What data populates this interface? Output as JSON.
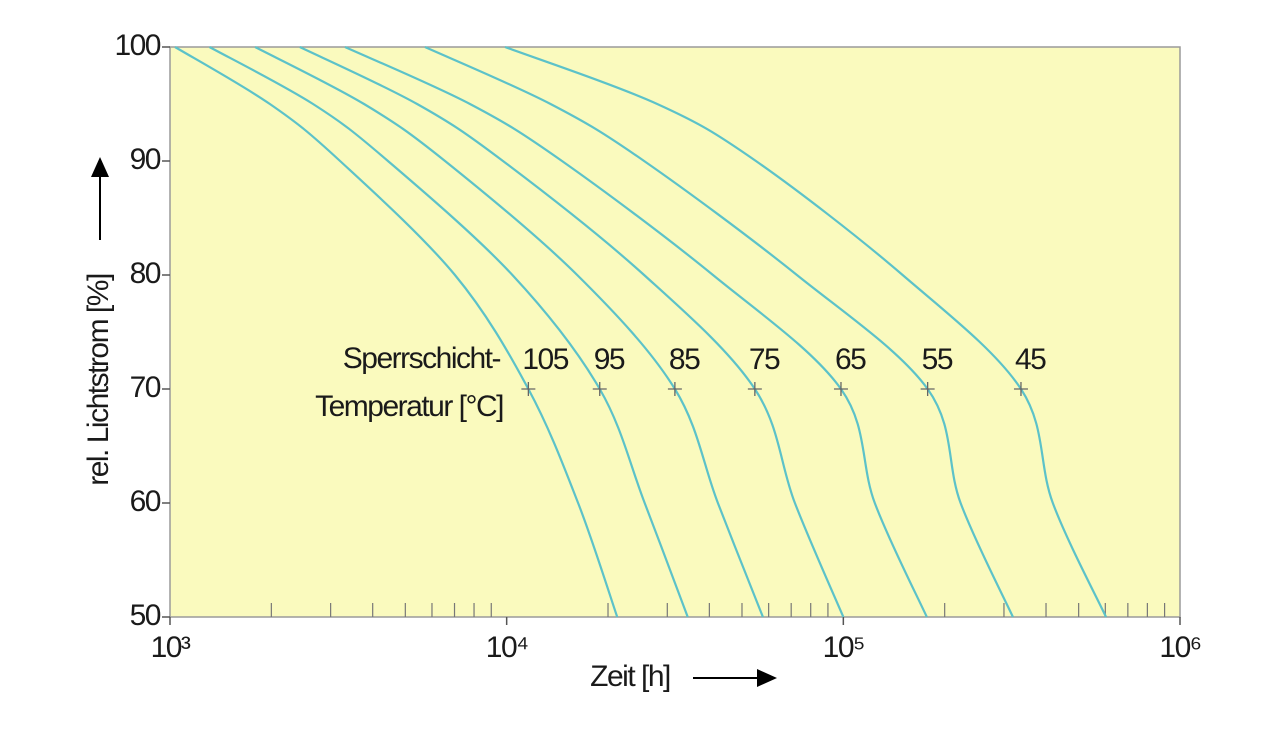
{
  "chart_data": {
    "type": "line",
    "x_label": "Zeit [h]",
    "y_label": "rel. Lichtstrom [%]",
    "annotation": [
      "Sperrschicht-",
      "Temperatur [°C]"
    ],
    "xscale": "log",
    "xlim": [
      1000,
      1000000
    ],
    "xticks": [
      {
        "value": 1000,
        "label": "10³"
      },
      {
        "value": 10000,
        "label": "10⁴"
      },
      {
        "value": 100000,
        "label": "10⁵"
      },
      {
        "value": 1000000,
        "label": "10⁶"
      }
    ],
    "xminorticks": [
      2000,
      3000,
      4000,
      5000,
      6000,
      7000,
      8000,
      9000,
      20000,
      30000,
      40000,
      50000,
      60000,
      70000,
      80000,
      90000,
      200000,
      300000,
      400000,
      500000,
      600000,
      700000,
      800000,
      900000
    ],
    "ylim": [
      50,
      100
    ],
    "yticks": [
      50,
      60,
      70,
      80,
      90,
      100
    ],
    "background": "#fafabe",
    "marker_index": 4,
    "series": [
      {
        "name": "105",
        "color": "#5cc2c9",
        "x": [
          1035,
          1980,
          3200,
          7020,
          11600,
          16300,
          21300
        ],
        "values": [
          100,
          95,
          90,
          80,
          70,
          60,
          50
        ]
      },
      {
        "name": "95",
        "color": "#5cc2c9",
        "x": [
          1310,
          2660,
          4440,
          10400,
          18900,
          25700,
          34500
        ],
        "values": [
          100,
          95,
          90,
          80,
          70,
          60,
          50
        ]
      },
      {
        "name": "85",
        "color": "#5cc2c9",
        "x": [
          1790,
          3770,
          6560,
          16200,
          31600,
          42400,
          57700
        ],
        "values": [
          100,
          95,
          90,
          80,
          70,
          60,
          50
        ]
      },
      {
        "name": "75",
        "color": "#5cc2c9",
        "x": [
          2430,
          5420,
          9750,
          25600,
          54600,
          71800,
          100000
        ],
        "values": [
          100,
          95,
          90,
          80,
          70,
          60,
          50
        ]
      },
      {
        "name": "65",
        "color": "#5cc2c9",
        "x": [
          3310,
          7780,
          14600,
          41000,
          98400,
          124000,
          177000
        ],
        "values": [
          100,
          95,
          90,
          80,
          70,
          60,
          50
        ]
      },
      {
        "name": "55",
        "color": "#5cc2c9",
        "x": [
          5720,
          13500,
          25600,
          72800,
          178000,
          223000,
          319000
        ],
        "values": [
          100,
          95,
          90,
          80,
          70,
          60,
          50
        ]
      },
      {
        "name": "45",
        "color": "#5cc2c9",
        "x": [
          9890,
          28000,
          55000,
          150000,
          337000,
          419000,
          603000
        ],
        "values": [
          100,
          95,
          90,
          80,
          70,
          60,
          50
        ]
      }
    ]
  }
}
